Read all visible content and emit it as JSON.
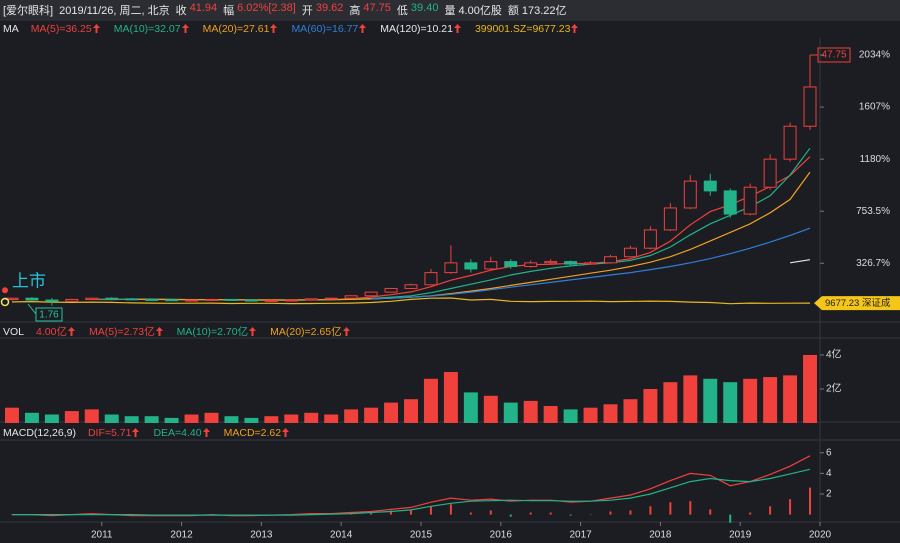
{
  "header": {
    "title": "[爱尔眼科]",
    "date": "2019/11/26, 周二, 北京",
    "fields": [
      {
        "label": "收",
        "value": "41.94",
        "color": "#f0413c"
      },
      {
        "label": "幅",
        "value": "6.02%[2.38]",
        "color": "#f0413c"
      },
      {
        "label": "开",
        "value": "39.62",
        "color": "#f0413c"
      },
      {
        "label": "高",
        "value": "47.75",
        "color": "#f0413c"
      },
      {
        "label": "低",
        "value": "39.40",
        "color": "#22b38a"
      },
      {
        "label": "量",
        "value": "4.00亿股",
        "color": "#e6e6e6"
      },
      {
        "label": "额",
        "value": "173.22亿",
        "color": "#e6e6e6"
      }
    ]
  },
  "chart_data": [
    {
      "type": "candlestick",
      "legend_title": "MA",
      "up_color": "#f0413c",
      "down_color": "#22b38a",
      "open": [
        30,
        40,
        25,
        15,
        30,
        40,
        35,
        30,
        28,
        22,
        25,
        30,
        25,
        20,
        22,
        25,
        35,
        40,
        60,
        90,
        120,
        150,
        250,
        330,
        280,
        340,
        300,
        330,
        340,
        320,
        330,
        380,
        450,
        600,
        780,
        1000,
        920,
        730,
        950,
        1180,
        1450
      ],
      "high": [
        45,
        50,
        42,
        35,
        45,
        48,
        42,
        36,
        32,
        30,
        35,
        34,
        28,
        26,
        28,
        38,
        45,
        65,
        95,
        125,
        160,
        280,
        475,
        360,
        380,
        360,
        350,
        360,
        350,
        345,
        395,
        470,
        630,
        820,
        1050,
        1060,
        940,
        980,
        1220,
        1480,
        2034
      ],
      "low": [
        20,
        20,
        -21,
        10,
        25,
        30,
        28,
        25,
        18,
        18,
        22,
        22,
        15,
        16,
        20,
        22,
        32,
        38,
        55,
        85,
        115,
        145,
        240,
        250,
        270,
        280,
        290,
        320,
        310,
        315,
        325,
        375,
        440,
        590,
        770,
        880,
        700,
        720,
        930,
        1160,
        1420
      ],
      "close": [
        40,
        25,
        15,
        30,
        40,
        35,
        30,
        28,
        22,
        25,
        30,
        25,
        20,
        22,
        25,
        35,
        40,
        60,
        90,
        120,
        150,
        250,
        330,
        280,
        340,
        300,
        330,
        340,
        320,
        330,
        380,
        450,
        600,
        780,
        1000,
        920,
        730,
        950,
        1180,
        1450,
        1772
      ],
      "series": [
        {
          "name": "MA(5)=36.25",
          "color": "#f0413c",
          "values": [
            null,
            null,
            null,
            null,
            30,
            29,
            32,
            33,
            31,
            28,
            27,
            26,
            24,
            24,
            24,
            27,
            29,
            36,
            50,
            69,
            92,
            134,
            188,
            226,
            270,
            300,
            316,
            318,
            326,
            324,
            340,
            364,
            416,
            508,
            642,
            750,
            806,
            876,
            956,
            1046,
            1200
          ]
        },
        {
          "name": "MA(10)=32.07",
          "color": "#22b38a",
          "values": [
            null,
            null,
            null,
            null,
            32,
            32,
            32,
            31,
            30,
            29,
            28,
            27,
            25,
            24,
            24,
            25,
            27,
            31,
            38,
            48,
            60,
            85,
            120,
            155,
            190,
            230,
            260,
            285,
            305,
            320,
            330,
            350,
            390,
            460,
            560,
            650,
            720,
            790,
            880,
            1050,
            1270
          ]
        },
        {
          "name": "MA(20)=27.61",
          "color": "#f0a020",
          "values": [
            null,
            null,
            null,
            null,
            null,
            null,
            30,
            30,
            29,
            29,
            28,
            28,
            27,
            26,
            26,
            27,
            28,
            30,
            34,
            40,
            48,
            60,
            78,
            98,
            120,
            145,
            170,
            195,
            220,
            245,
            270,
            300,
            335,
            380,
            440,
            510,
            580,
            650,
            740,
            850,
            1074
          ]
        },
        {
          "name": "MA(60)=16.77",
          "color": "#2f7fd8",
          "values": [
            null,
            null,
            null,
            null,
            null,
            null,
            null,
            null,
            null,
            null,
            null,
            null,
            null,
            null,
            null,
            null,
            null,
            null,
            35,
            40,
            48,
            58,
            72,
            90,
            110,
            130,
            150,
            170,
            190,
            210,
            230,
            250,
            275,
            300,
            330,
            365,
            405,
            450,
            500,
            555,
            614
          ]
        },
        {
          "name": "MA(120)=10.21",
          "color": "#e6e6e6",
          "values": [
            null,
            null,
            null,
            null,
            null,
            null,
            null,
            null,
            null,
            null,
            null,
            null,
            null,
            null,
            null,
            null,
            null,
            null,
            null,
            null,
            null,
            null,
            null,
            null,
            null,
            null,
            null,
            null,
            null,
            null,
            null,
            null,
            null,
            null,
            null,
            null,
            null,
            null,
            null,
            330,
            356
          ]
        },
        {
          "name": "399001.SZ=9677.23",
          "color": "#e8b61d",
          "values": [
            10,
            12,
            8,
            6,
            8,
            6,
            2,
            0,
            -2,
            -1,
            0,
            -3,
            -2,
            -2,
            -4,
            -3,
            -2,
            0,
            5,
            15,
            30,
            40,
            42,
            25,
            30,
            15,
            12,
            14,
            15,
            16,
            12,
            14,
            16,
            14,
            8,
            5,
            -5,
            0,
            -2,
            -1,
            0
          ]
        }
      ],
      "annotations": {
        "listing": "上市",
        "low": "1.76",
        "high": "47.75",
        "index_tag": "9677.23 深证成"
      },
      "ylim": [
        -155,
        2116
      ],
      "yticks": [
        {
          "value": 2034,
          "label": "2034%"
        },
        {
          "value": 1607,
          "label": "1607%"
        },
        {
          "value": 1180,
          "label": "1180%"
        },
        {
          "value": 753.5,
          "label": "753.5%"
        },
        {
          "value": 326.7,
          "label": "326.7%"
        }
      ]
    },
    {
      "type": "bar",
      "title": "VOL",
      "legend": [
        {
          "text": "4.00亿",
          "color": "#f0413c"
        },
        {
          "text": "MA(5)=2.73亿",
          "color": "#f0413c"
        },
        {
          "text": "MA(10)=2.70亿",
          "color": "#22b38a"
        },
        {
          "text": "MA(20)=2.65亿",
          "color": "#f0a020"
        }
      ],
      "values": [
        0.9,
        0.6,
        0.5,
        0.7,
        0.8,
        0.5,
        0.4,
        0.4,
        0.3,
        0.5,
        0.6,
        0.4,
        0.3,
        0.4,
        0.5,
        0.6,
        0.5,
        0.8,
        0.9,
        1.2,
        1.4,
        2.6,
        3.0,
        1.8,
        1.6,
        1.2,
        1.3,
        1.0,
        0.8,
        0.9,
        1.1,
        1.4,
        2.0,
        2.4,
        2.8,
        2.6,
        2.4,
        2.6,
        2.7,
        2.8,
        4.0
      ],
      "ylim": [
        0,
        4.88
      ],
      "yticks": [
        {
          "value": 4,
          "label": "4亿"
        },
        {
          "value": 2,
          "label": "2亿"
        }
      ]
    },
    {
      "type": "macd",
      "title": "MACD(12,26,9)",
      "series": [
        {
          "name": "DIF=5.71",
          "color": "#f0413c",
          "values": [
            0,
            0,
            -0.1,
            0,
            0.1,
            0,
            -0.1,
            -0.1,
            -0.1,
            -0.1,
            0,
            -0.1,
            -0.1,
            -0.05,
            0,
            0.1,
            0.1,
            0.2,
            0.3,
            0.5,
            0.7,
            1.2,
            1.6,
            1.4,
            1.5,
            1.3,
            1.4,
            1.4,
            1.2,
            1.3,
            1.6,
            1.9,
            2.5,
            3.3,
            4.0,
            3.8,
            2.8,
            3.2,
            3.9,
            4.7,
            5.71
          ]
        },
        {
          "name": "DEA=4.40",
          "color": "#22b38a",
          "values": [
            0,
            0,
            0,
            0,
            0,
            0,
            0,
            -0.05,
            -0.05,
            -0.05,
            -0.05,
            -0.05,
            -0.05,
            -0.05,
            -0.05,
            0,
            0.05,
            0.1,
            0.2,
            0.3,
            0.45,
            0.8,
            1.1,
            1.3,
            1.35,
            1.4,
            1.35,
            1.35,
            1.3,
            1.3,
            1.4,
            1.6,
            2.0,
            2.6,
            3.2,
            3.5,
            3.3,
            3.2,
            3.5,
            3.95,
            4.4
          ]
        }
      ],
      "histogram": {
        "name": "MACD=2.62",
        "color": "#f0a020",
        "up_color": "#f0413c",
        "down_color": "#22b38a",
        "values": [
          0.05,
          -0.05,
          -0.1,
          0,
          0.05,
          -0.05,
          -0.05,
          -0.05,
          -0.05,
          0,
          0.05,
          -0.05,
          -0.05,
          0,
          0.05,
          0.1,
          0.1,
          0.2,
          0.3,
          0.4,
          0.5,
          0.8,
          1.0,
          0.2,
          0.4,
          -0.2,
          0.2,
          0.2,
          -0.1,
          0,
          0.3,
          0.4,
          0.8,
          1.2,
          1.3,
          0.5,
          -0.8,
          0.2,
          0.8,
          1.5,
          2.62
        ]
      },
      "ylim": [
        -0.72,
        7.24
      ],
      "yticks": [
        6,
        4,
        2
      ],
      "xlim": [
        0,
        41
      ],
      "xticks": [
        {
          "value": 5,
          "label": "2011"
        },
        {
          "value": 9,
          "label": "2012"
        },
        {
          "value": 13,
          "label": "2013"
        },
        {
          "value": 17,
          "label": "2014"
        },
        {
          "value": 21,
          "label": "2015"
        },
        {
          "value": 25,
          "label": "2016"
        },
        {
          "value": 29,
          "label": "2017"
        },
        {
          "value": 33,
          "label": "2018"
        },
        {
          "value": 37,
          "label": "2019"
        },
        {
          "value": 41,
          "label": "2020"
        }
      ]
    }
  ]
}
